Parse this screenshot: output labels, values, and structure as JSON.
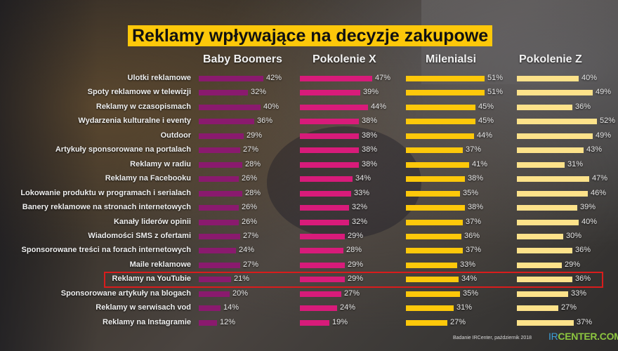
{
  "title": "Reklamy wpływające na decyzje zakupowe",
  "footer": {
    "source": "Badanie IRCenter, październik 2018",
    "logo_ir": "IR",
    "logo_rest": "CENTER.COM"
  },
  "highlighted_row": "Reklamy na YouTubie",
  "colors": {
    "title_bg": "#fdc80a",
    "baby_boomers": "#8a1a6e",
    "pokolenie_x": "#d81b7a",
    "milenialsi": "#fdc80a",
    "pokolenie_z": "#fde28a",
    "highlight": "#d91c1c"
  },
  "chart_data": {
    "type": "bar",
    "orientation": "horizontal",
    "title": "Reklamy wpływające na decyzje zakupowe",
    "xlabel": "",
    "ylabel": "",
    "unit": "%",
    "categories": [
      "Ulotki reklamowe",
      "Spoty reklamowe w telewizji",
      "Reklamy w czasopismach",
      "Wydarzenia kulturalne i eventy",
      "Outdoor",
      "Artykuły sponsorowane na portalach",
      "Reklamy w radiu",
      "Reklamy na Facebooku",
      "Lokowanie produktu w programach i serialach",
      "Banery reklamowe na stronach internetowych",
      "Kanały liderów opinii",
      "Wiadomości SMS z ofertami",
      "Sponsorowane treści na forach internetowych",
      "Maile reklamowe",
      "Reklamy na YouTubie",
      "Sponsorowane artykuły na blogach",
      "Reklamy w serwisach vod",
      "Reklamy na Instagramie"
    ],
    "series": [
      {
        "name": "Baby Boomers",
        "color": "#8a1a6e",
        "values": [
          42,
          32,
          40,
          36,
          29,
          27,
          28,
          26,
          28,
          26,
          26,
          27,
          24,
          27,
          21,
          20,
          14,
          12
        ]
      },
      {
        "name": "Pokolenie X",
        "color": "#d81b7a",
        "values": [
          47,
          39,
          44,
          38,
          38,
          38,
          38,
          34,
          33,
          32,
          32,
          29,
          28,
          29,
          29,
          27,
          24,
          19
        ]
      },
      {
        "name": "Milenialsi",
        "color": "#fdc80a",
        "values": [
          51,
          51,
          45,
          45,
          44,
          37,
          41,
          38,
          35,
          38,
          37,
          36,
          37,
          33,
          34,
          35,
          31,
          27
        ]
      },
      {
        "name": "Pokolenie Z",
        "color": "#fde28a",
        "values": [
          40,
          49,
          36,
          52,
          49,
          43,
          31,
          47,
          46,
          39,
          40,
          30,
          36,
          29,
          36,
          33,
          27,
          37
        ]
      }
    ],
    "legend_position": "top (column headers)",
    "grid": false
  }
}
